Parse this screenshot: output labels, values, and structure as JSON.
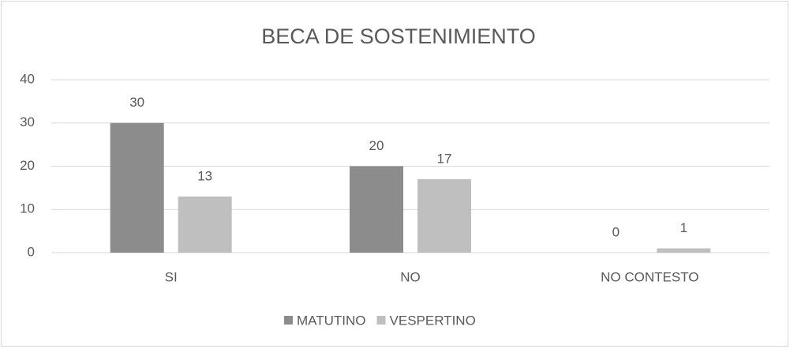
{
  "chart_data": {
    "type": "bar",
    "title": "BECA DE SOSTENIMIENTO",
    "categories": [
      "SI",
      "NO",
      "NO CONTESTO"
    ],
    "series": [
      {
        "name": "MATUTINO",
        "color": "#8c8c8c",
        "values": [
          30,
          20,
          0
        ]
      },
      {
        "name": "VESPERTINO",
        "color": "#bfbfbf",
        "values": [
          13,
          17,
          1
        ]
      }
    ],
    "ylim": [
      0,
      40
    ],
    "yticks": [
      0,
      10,
      20,
      30,
      40
    ],
    "grid": true,
    "legend": "bottom"
  }
}
